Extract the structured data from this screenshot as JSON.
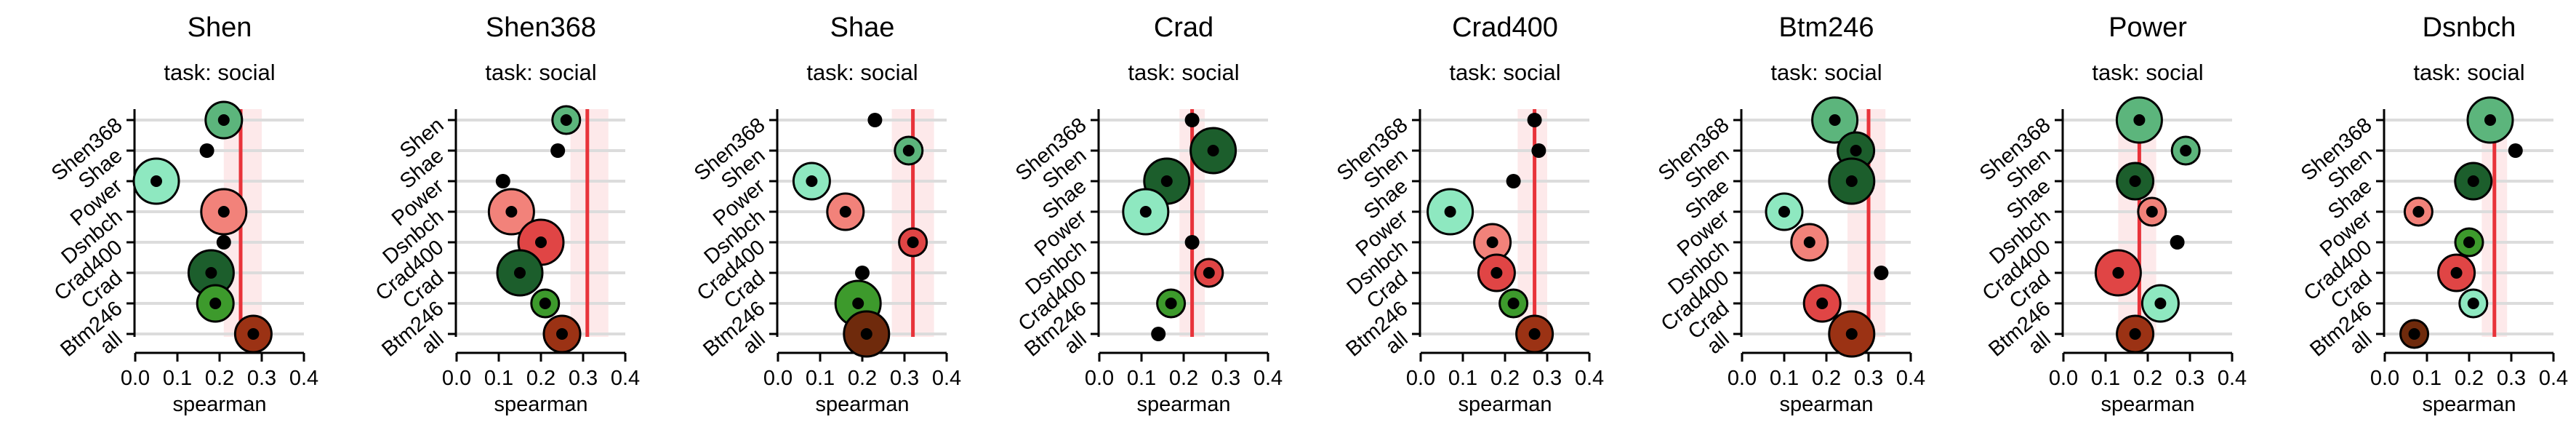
{
  "figure": {
    "subtitle": "task: social",
    "xlabel": "spearman",
    "x_ticks": [
      "0.0",
      "0.1",
      "0.2",
      "0.3",
      "0.4"
    ]
  },
  "colors": {
    "band": "#fde9ea",
    "vline": "#e8333a",
    "grid": "#dcdcdc",
    "palette": {
      "mint": "#8ee8c0",
      "mid_green": "#5cb57c",
      "dark_green": "#1c5e2c",
      "bright_green": "#3d9a2c",
      "salmon": "#f2827a",
      "red": "#e04545",
      "brown": "#9b3214",
      "dark_brown": "#6f2a0c",
      "black": "#000000"
    }
  },
  "chart_data": [
    {
      "type": "scatter",
      "title": "Shen",
      "xlim": [
        0.0,
        0.4
      ],
      "ref": 0.25,
      "band": [
        0.21,
        0.3
      ],
      "rows": [
        "Shen368",
        "Shae",
        "Power",
        "Dsnbch",
        "Crad400",
        "Crad",
        "Btm246",
        "all"
      ],
      "points": [
        {
          "row": "Shen368",
          "x": 0.21,
          "size": 2,
          "color": "mid_green"
        },
        {
          "row": "Shae",
          "x": 0.17,
          "size": 0,
          "color": "black"
        },
        {
          "row": "Power",
          "x": 0.05,
          "size": 3,
          "color": "mint"
        },
        {
          "row": "Dsnbch",
          "x": 0.21,
          "size": 3,
          "color": "salmon"
        },
        {
          "row": "Crad400",
          "x": 0.21,
          "size": 0,
          "color": "black"
        },
        {
          "row": "Crad",
          "x": 0.18,
          "size": 3,
          "color": "dark_green"
        },
        {
          "row": "Btm246",
          "x": 0.19,
          "size": 2,
          "color": "bright_green"
        },
        {
          "row": "all",
          "x": 0.28,
          "size": 2,
          "color": "brown"
        }
      ]
    },
    {
      "type": "scatter",
      "title": "Shen368",
      "xlim": [
        0.0,
        0.4
      ],
      "ref": 0.31,
      "band": [
        0.27,
        0.36
      ],
      "rows": [
        "Shen",
        "Shae",
        "Power",
        "Dsnbch",
        "Crad400",
        "Crad",
        "Btm246",
        "all"
      ],
      "points": [
        {
          "row": "Shen",
          "x": 0.26,
          "size": 1,
          "color": "mid_green"
        },
        {
          "row": "Shae",
          "x": 0.24,
          "size": 0,
          "color": "black"
        },
        {
          "row": "Power",
          "x": 0.11,
          "size": 0,
          "color": "black"
        },
        {
          "row": "Dsnbch",
          "x": 0.13,
          "size": 3,
          "color": "salmon"
        },
        {
          "row": "Crad400",
          "x": 0.2,
          "size": 3,
          "color": "red"
        },
        {
          "row": "Crad",
          "x": 0.15,
          "size": 3,
          "color": "dark_green"
        },
        {
          "row": "Btm246",
          "x": 0.21,
          "size": 1,
          "color": "bright_green"
        },
        {
          "row": "all",
          "x": 0.25,
          "size": 2,
          "color": "brown"
        }
      ]
    },
    {
      "type": "scatter",
      "title": "Shae",
      "xlim": [
        0.0,
        0.4
      ],
      "ref": 0.32,
      "band": [
        0.27,
        0.37
      ],
      "rows": [
        "Shen368",
        "Shen",
        "Power",
        "Dsnbch",
        "Crad400",
        "Crad",
        "Btm246",
        "all"
      ],
      "points": [
        {
          "row": "Shen368",
          "x": 0.23,
          "size": 0,
          "color": "black"
        },
        {
          "row": "Shen",
          "x": 0.31,
          "size": 1,
          "color": "mid_green"
        },
        {
          "row": "Power",
          "x": 0.08,
          "size": 2,
          "color": "mint"
        },
        {
          "row": "Dsnbch",
          "x": 0.16,
          "size": 2,
          "color": "salmon"
        },
        {
          "row": "Crad400",
          "x": 0.32,
          "size": 1,
          "color": "red"
        },
        {
          "row": "Crad",
          "x": 0.2,
          "size": 0,
          "color": "black"
        },
        {
          "row": "Btm246",
          "x": 0.19,
          "size": 3,
          "color": "bright_green"
        },
        {
          "row": "all",
          "x": 0.21,
          "size": 3,
          "color": "dark_brown"
        }
      ]
    },
    {
      "type": "scatter",
      "title": "Crad",
      "xlim": [
        0.0,
        0.4
      ],
      "ref": 0.22,
      "band": [
        0.19,
        0.25
      ],
      "rows": [
        "Shen368",
        "Shen",
        "Shae",
        "Power",
        "Dsnbch",
        "Crad400",
        "Btm246",
        "all"
      ],
      "points": [
        {
          "row": "Shen368",
          "x": 0.22,
          "size": 0,
          "color": "black"
        },
        {
          "row": "Shen",
          "x": 0.27,
          "size": 3,
          "color": "dark_green"
        },
        {
          "row": "Shae",
          "x": 0.16,
          "size": 3,
          "color": "dark_green"
        },
        {
          "row": "Power",
          "x": 0.11,
          "size": 3,
          "color": "mint"
        },
        {
          "row": "Dsnbch",
          "x": 0.22,
          "size": 0,
          "color": "black"
        },
        {
          "row": "Crad400",
          "x": 0.26,
          "size": 1,
          "color": "red"
        },
        {
          "row": "Btm246",
          "x": 0.17,
          "size": 1,
          "color": "bright_green"
        },
        {
          "row": "all",
          "x": 0.14,
          "size": 0,
          "color": "black"
        }
      ]
    },
    {
      "type": "scatter",
      "title": "Crad400",
      "xlim": [
        0.0,
        0.4
      ],
      "ref": 0.27,
      "band": [
        0.23,
        0.3
      ],
      "rows": [
        "Shen368",
        "Shen",
        "Shae",
        "Power",
        "Dsnbch",
        "Crad",
        "Btm246",
        "all"
      ],
      "points": [
        {
          "row": "Shen368",
          "x": 0.27,
          "size": 0,
          "color": "black"
        },
        {
          "row": "Shen",
          "x": 0.28,
          "size": 0,
          "color": "black"
        },
        {
          "row": "Shae",
          "x": 0.22,
          "size": 0,
          "color": "black"
        },
        {
          "row": "Power",
          "x": 0.07,
          "size": 3,
          "color": "mint"
        },
        {
          "row": "Dsnbch",
          "x": 0.17,
          "size": 2,
          "color": "salmon"
        },
        {
          "row": "Crad",
          "x": 0.18,
          "size": 2,
          "color": "red"
        },
        {
          "row": "Btm246",
          "x": 0.22,
          "size": 1,
          "color": "bright_green"
        },
        {
          "row": "all",
          "x": 0.27,
          "size": 2,
          "color": "brown"
        }
      ]
    },
    {
      "type": "scatter",
      "title": "Btm246",
      "xlim": [
        0.0,
        0.4
      ],
      "ref": 0.3,
      "band": [
        0.25,
        0.34
      ],
      "rows": [
        "Shen368",
        "Shen",
        "Shae",
        "Power",
        "Dsnbch",
        "Crad400",
        "Crad",
        "all"
      ],
      "points": [
        {
          "row": "Shen368",
          "x": 0.22,
          "size": 3,
          "color": "mid_green"
        },
        {
          "row": "Shen",
          "x": 0.27,
          "size": 2,
          "color": "dark_green"
        },
        {
          "row": "Shae",
          "x": 0.26,
          "size": 3,
          "color": "dark_green"
        },
        {
          "row": "Power",
          "x": 0.1,
          "size": 2,
          "color": "mint"
        },
        {
          "row": "Dsnbch",
          "x": 0.16,
          "size": 2,
          "color": "salmon"
        },
        {
          "row": "Crad400",
          "x": 0.33,
          "size": 0,
          "color": "black"
        },
        {
          "row": "Crad",
          "x": 0.19,
          "size": 2,
          "color": "red"
        },
        {
          "row": "all",
          "x": 0.26,
          "size": 3,
          "color": "brown"
        }
      ]
    },
    {
      "type": "scatter",
      "title": "Power",
      "xlim": [
        0.0,
        0.4
      ],
      "ref": 0.18,
      "band": [
        0.13,
        0.22
      ],
      "rows": [
        "Shen368",
        "Shen",
        "Shae",
        "Dsnbch",
        "Crad400",
        "Crad",
        "Btm246",
        "all"
      ],
      "points": [
        {
          "row": "Shen368",
          "x": 0.18,
          "size": 3,
          "color": "mid_green"
        },
        {
          "row": "Shen",
          "x": 0.29,
          "size": 1,
          "color": "mid_green"
        },
        {
          "row": "Shae",
          "x": 0.17,
          "size": 2,
          "color": "dark_green"
        },
        {
          "row": "Dsnbch",
          "x": 0.21,
          "size": 1,
          "color": "salmon"
        },
        {
          "row": "Crad400",
          "x": 0.27,
          "size": 0,
          "color": "black"
        },
        {
          "row": "Crad",
          "x": 0.13,
          "size": 3,
          "color": "red"
        },
        {
          "row": "Btm246",
          "x": 0.23,
          "size": 2,
          "color": "mint"
        },
        {
          "row": "all",
          "x": 0.17,
          "size": 2,
          "color": "brown"
        }
      ]
    },
    {
      "type": "scatter",
      "title": "Dsnbch",
      "xlim": [
        0.0,
        0.4
      ],
      "ref": 0.26,
      "band": [
        0.23,
        0.29
      ],
      "rows": [
        "Shen368",
        "Shen",
        "Shae",
        "Power",
        "Crad400",
        "Crad",
        "Btm246",
        "all"
      ],
      "points": [
        {
          "row": "Shen368",
          "x": 0.25,
          "size": 3,
          "color": "mid_green"
        },
        {
          "row": "Shen",
          "x": 0.31,
          "size": 0,
          "color": "black"
        },
        {
          "row": "Shae",
          "x": 0.21,
          "size": 2,
          "color": "dark_green"
        },
        {
          "row": "Power",
          "x": 0.08,
          "size": 1,
          "color": "salmon"
        },
        {
          "row": "Crad400",
          "x": 0.2,
          "size": 1,
          "color": "bright_green"
        },
        {
          "row": "Crad",
          "x": 0.17,
          "size": 2,
          "color": "red"
        },
        {
          "row": "Btm246",
          "x": 0.21,
          "size": 1,
          "color": "mint"
        },
        {
          "row": "all",
          "x": 0.07,
          "size": 1,
          "color": "dark_brown"
        }
      ]
    }
  ]
}
